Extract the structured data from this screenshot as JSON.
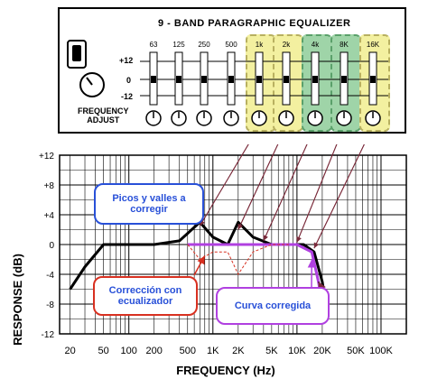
{
  "equalizer": {
    "title": "9 - BAND PARAGRAPHIC EQUALIZER",
    "bands": [
      "63",
      "125",
      "250",
      "500",
      "1k",
      "2k",
      "4k",
      "8K",
      "16K"
    ],
    "scale": [
      "+12",
      "0",
      "-12"
    ],
    "adjust_label": "FREQUENCY\nADJUST"
  },
  "chart_data": {
    "type": "line",
    "ylabel": "RESPONSE (dB)",
    "xlabel": "FREQUENCY (Hz)",
    "y_ticks": [
      "+12",
      "+8",
      "+4",
      "0",
      "-4",
      "-8",
      "-12"
    ],
    "x_ticks": [
      "20",
      "50",
      "100",
      "200",
      "500",
      "1K",
      "2K",
      "5K",
      "10K",
      "20K",
      "50K",
      "100K"
    ],
    "series": [
      {
        "name": "",
        "color": "#000000",
        "x": [
          20,
          30,
          50,
          100,
          200,
          400,
          700,
          1000,
          1500,
          2000,
          3000,
          5000,
          8000,
          12000,
          16000,
          20000,
          22000
        ],
        "y": [
          -6,
          -3,
          0,
          0,
          0,
          0.5,
          3,
          1,
          0,
          3,
          1,
          0,
          0,
          0,
          -1,
          -5,
          -8
        ]
      },
      {
        "name": "",
        "color": "#b040e0",
        "x": [
          500,
          1000,
          2000,
          5000,
          10000,
          15000,
          18000,
          20000
        ],
        "y": [
          0,
          0,
          0,
          0,
          0,
          -1,
          -5,
          -8
        ]
      }
    ]
  },
  "callouts": {
    "peaks": "Picos y valles a corregir",
    "correction": "Corrección con ecualizador",
    "corrected": "Curva corregida"
  },
  "colors": {
    "blue": "#2850d8",
    "red": "#d83020",
    "purple": "#b040e0",
    "arrow": "#7a2a3a"
  }
}
